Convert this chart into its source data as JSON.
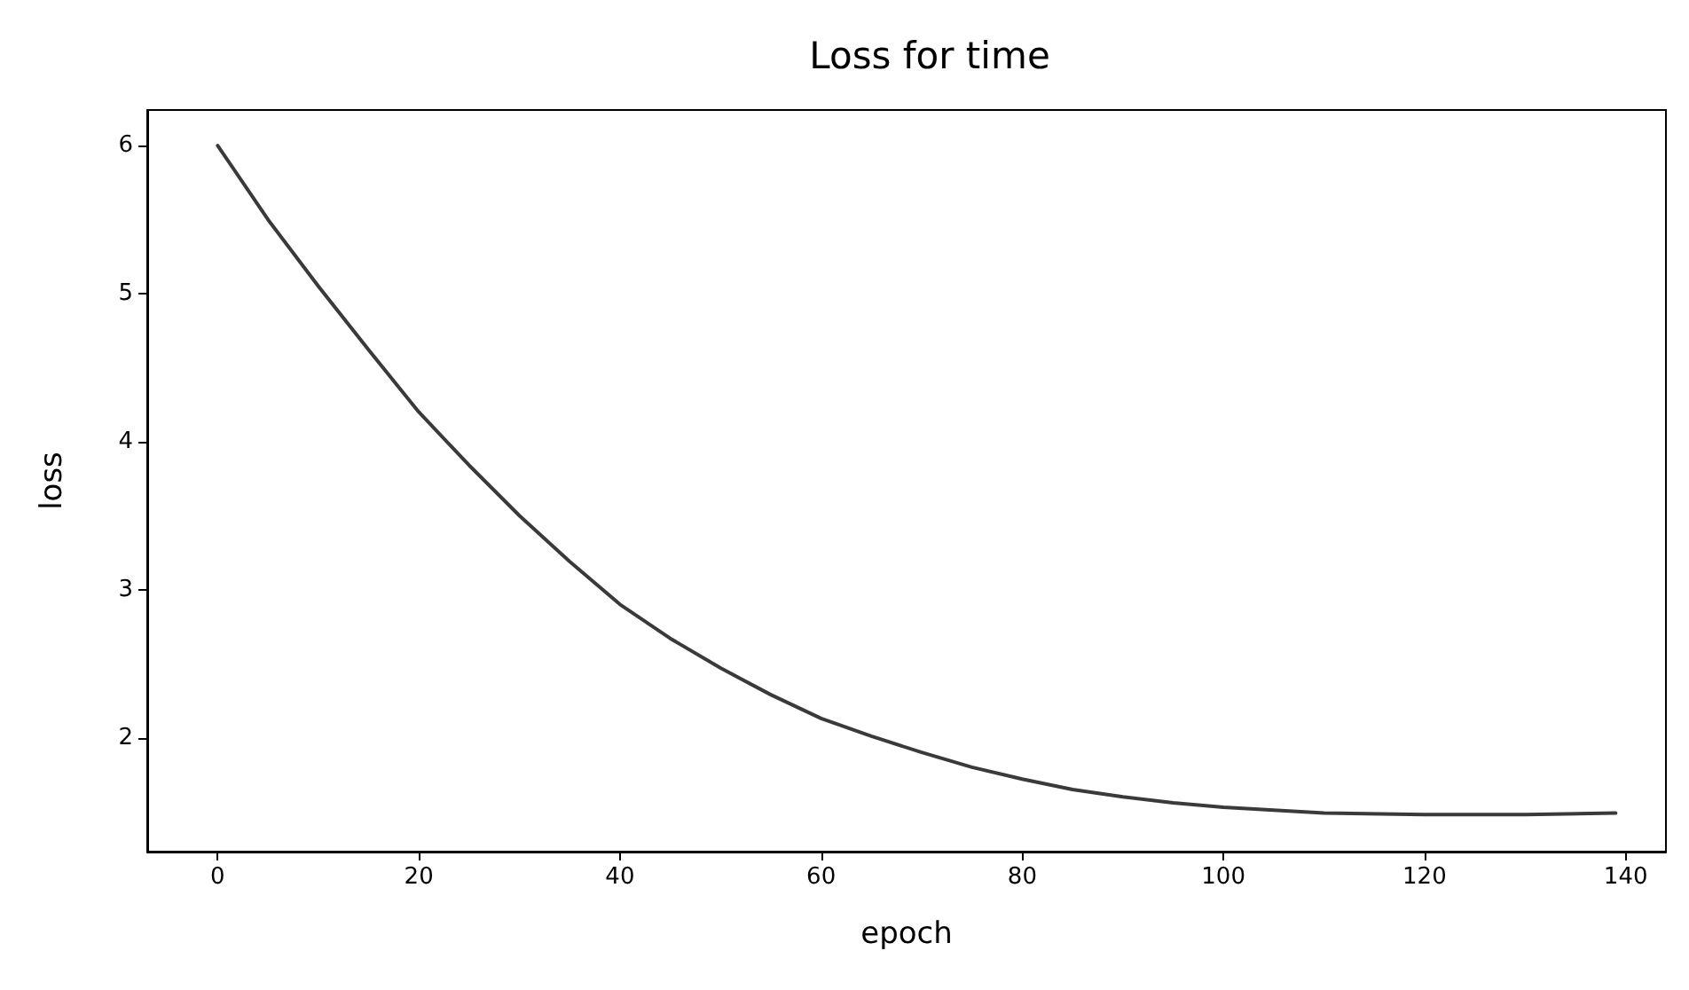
{
  "chart_data": {
    "type": "line",
    "title": "Loss for time",
    "xlabel": "epoch",
    "ylabel": "loss",
    "x": [
      0,
      5,
      10,
      15,
      20,
      25,
      30,
      35,
      40,
      45,
      50,
      55,
      60,
      65,
      70,
      75,
      80,
      85,
      90,
      95,
      100,
      110,
      120,
      130,
      139
    ],
    "series": [
      {
        "color": "#3a3a3a",
        "values": [
          6.0,
          5.5,
          5.05,
          4.62,
          4.2,
          3.84,
          3.5,
          3.19,
          2.9,
          2.67,
          2.47,
          2.29,
          2.13,
          2.01,
          1.9,
          1.8,
          1.72,
          1.65,
          1.6,
          1.56,
          1.53,
          1.49,
          1.48,
          1.48,
          1.49
        ]
      }
    ],
    "xlim": [
      -7,
      144
    ],
    "xticks": [
      0,
      20,
      40,
      60,
      80,
      100,
      120,
      140
    ],
    "ylim": [
      1.23,
      6.24
    ],
    "yticks": [
      2,
      3,
      4,
      5,
      6
    ],
    "grid": false,
    "marker": "none",
    "line_style": "solid"
  }
}
